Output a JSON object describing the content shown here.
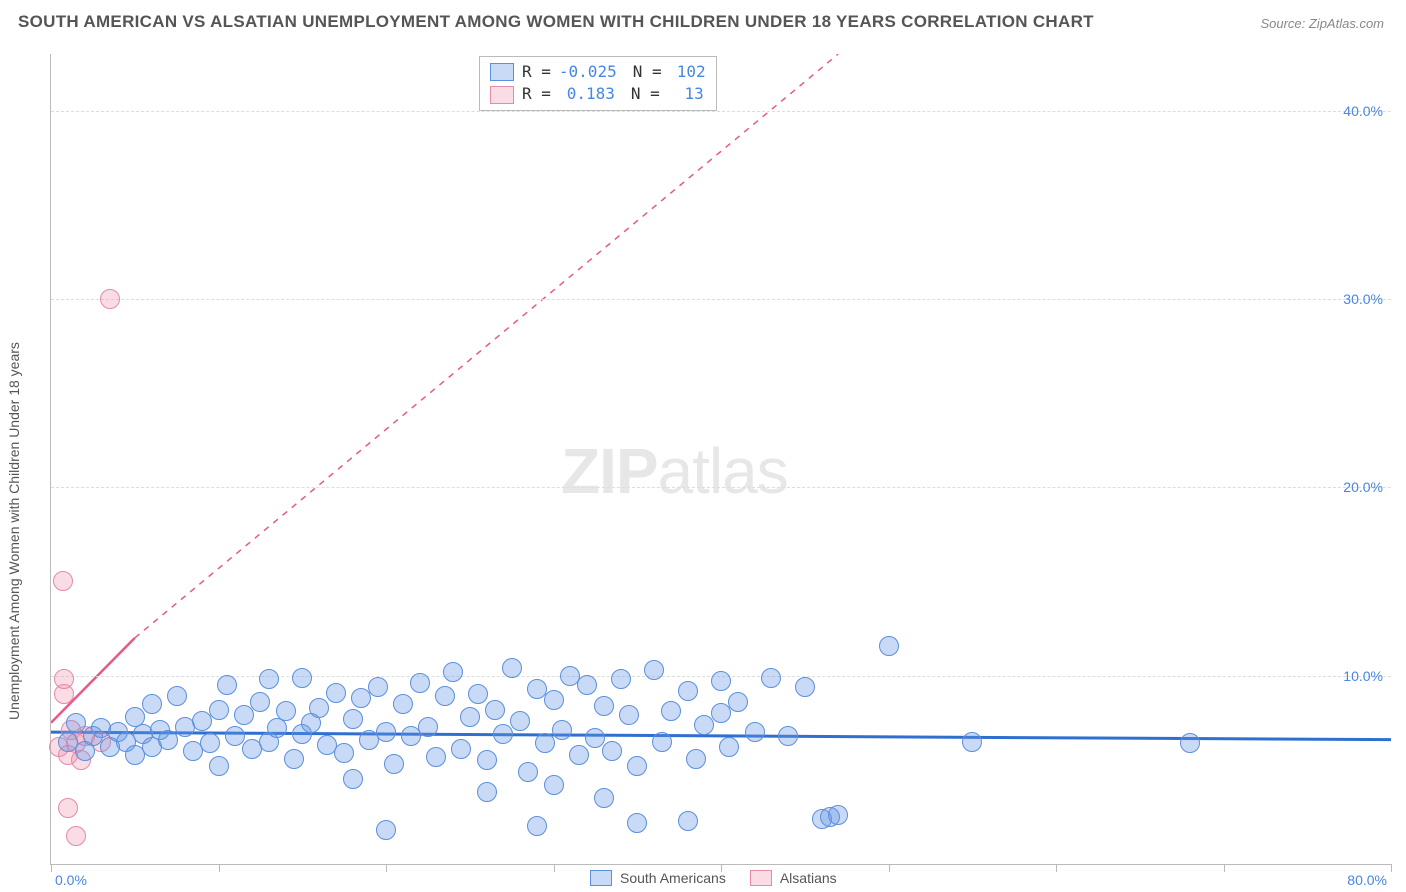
{
  "title": "SOUTH AMERICAN VS ALSATIAN UNEMPLOYMENT AMONG WOMEN WITH CHILDREN UNDER 18 YEARS CORRELATION CHART",
  "source": "Source: ZipAtlas.com",
  "watermark_zip": "ZIP",
  "watermark_atlas": "atlas",
  "y_axis_title": "Unemployment Among Women with Children Under 18 years",
  "chart": {
    "type": "scatter",
    "background_color": "#ffffff",
    "grid_color": "#dddddd",
    "axis_color": "#bbbbbb",
    "xlim": [
      0,
      80
    ],
    "ylim": [
      0,
      43
    ],
    "xtick_step": 10,
    "ytick_step": 10,
    "yticks": [
      10,
      20,
      30,
      40
    ],
    "ytick_labels": [
      "10.0%",
      "20.0%",
      "30.0%",
      "40.0%"
    ],
    "xtick_labels": [
      "0.0%",
      "80.0%"
    ],
    "marker_radius": 9,
    "marker_border_width": 1.2,
    "series": {
      "south_americans": {
        "label": "South Americans",
        "fill": "rgba(100,150,230,0.35)",
        "stroke": "#5c8fdc",
        "r_value": "-0.025",
        "n_value": "102",
        "line_color": "#2f6fd0",
        "line_width": 3,
        "line_dash": "none",
        "line": {
          "x1": 0,
          "y1": 7.0,
          "x2": 80,
          "y2": 6.6
        },
        "points": [
          [
            1,
            6.5
          ],
          [
            1.5,
            7.5
          ],
          [
            2,
            6
          ],
          [
            2.5,
            6.8
          ],
          [
            3,
            7.2
          ],
          [
            3.5,
            6.2
          ],
          [
            4,
            7
          ],
          [
            4.5,
            6.5
          ],
          [
            5,
            7.8
          ],
          [
            5,
            5.8
          ],
          [
            5.5,
            6.9
          ],
          [
            6,
            8.5
          ],
          [
            6,
            6.2
          ],
          [
            6.5,
            7.1
          ],
          [
            7,
            6.6
          ],
          [
            7.5,
            8.9
          ],
          [
            8,
            7.3
          ],
          [
            8.5,
            6
          ],
          [
            9,
            7.6
          ],
          [
            9.5,
            6.4
          ],
          [
            10,
            8.2
          ],
          [
            10,
            5.2
          ],
          [
            10.5,
            9.5
          ],
          [
            11,
            6.8
          ],
          [
            11.5,
            7.9
          ],
          [
            12,
            6.1
          ],
          [
            12.5,
            8.6
          ],
          [
            13,
            9.8
          ],
          [
            13,
            6.5
          ],
          [
            13.5,
            7.2
          ],
          [
            14,
            8.1
          ],
          [
            14.5,
            5.6
          ],
          [
            15,
            9.9
          ],
          [
            15,
            6.9
          ],
          [
            15.5,
            7.5
          ],
          [
            16,
            8.3
          ],
          [
            16.5,
            6.3
          ],
          [
            17,
            9.1
          ],
          [
            17.5,
            5.9
          ],
          [
            18,
            7.7
          ],
          [
            18,
            4.5
          ],
          [
            18.5,
            8.8
          ],
          [
            19,
            6.6
          ],
          [
            19.5,
            9.4
          ],
          [
            20,
            7.0
          ],
          [
            20.5,
            5.3
          ],
          [
            20,
            1.8
          ],
          [
            21,
            8.5
          ],
          [
            21.5,
            6.8
          ],
          [
            22,
            9.6
          ],
          [
            22.5,
            7.3
          ],
          [
            23,
            5.7
          ],
          [
            23.5,
            8.9
          ],
          [
            24,
            10.2
          ],
          [
            24.5,
            6.1
          ],
          [
            25,
            7.8
          ],
          [
            25.5,
            9.0
          ],
          [
            26,
            5.5
          ],
          [
            26,
            3.8
          ],
          [
            26.5,
            8.2
          ],
          [
            27,
            6.9
          ],
          [
            27.5,
            10.4
          ],
          [
            28,
            7.6
          ],
          [
            28.5,
            4.9
          ],
          [
            29,
            9.3
          ],
          [
            29,
            2.0
          ],
          [
            29.5,
            6.4
          ],
          [
            30,
            8.7
          ],
          [
            30.5,
            7.1
          ],
          [
            30,
            4.2
          ],
          [
            31,
            10.0
          ],
          [
            31.5,
            5.8
          ],
          [
            32,
            9.5
          ],
          [
            32.5,
            6.7
          ],
          [
            33,
            8.4
          ],
          [
            33,
            3.5
          ],
          [
            33.5,
            6.0
          ],
          [
            34,
            9.8
          ],
          [
            34.5,
            7.9
          ],
          [
            35,
            5.2
          ],
          [
            35,
            2.2
          ],
          [
            36,
            10.3
          ],
          [
            36.5,
            6.5
          ],
          [
            37,
            8.1
          ],
          [
            38,
            9.2
          ],
          [
            38.5,
            5.6
          ],
          [
            39,
            7.4
          ],
          [
            38,
            2.3
          ],
          [
            40,
            9.7
          ],
          [
            40.5,
            6.2
          ],
          [
            41,
            8.6
          ],
          [
            42,
            7.0
          ],
          [
            43,
            9.9
          ],
          [
            44,
            6.8
          ],
          [
            45,
            9.4
          ],
          [
            46,
            2.4
          ],
          [
            46.5,
            2.5
          ],
          [
            47,
            2.6
          ],
          [
            40,
            8.0
          ],
          [
            50,
            11.6
          ],
          [
            55,
            6.5
          ],
          [
            68,
            6.4
          ]
        ]
      },
      "alsatians": {
        "label": "Alsatians",
        "fill": "rgba(240,140,170,0.30)",
        "stroke": "#e68aa8",
        "r_value": "0.183",
        "n_value": "13",
        "line_color": "#e65a8a",
        "line_width_solid": 2.5,
        "line_width_dash": 1.5,
        "line_solid": {
          "x1": 0,
          "y1": 7.5,
          "x2": 5,
          "y2": 12.0
        },
        "line_dash": {
          "x1": 5,
          "y1": 12.0,
          "x2": 47,
          "y2": 43
        },
        "points": [
          [
            0.5,
            6.2
          ],
          [
            0.8,
            9.0
          ],
          [
            0.8,
            9.8
          ],
          [
            1.0,
            5.8
          ],
          [
            1.2,
            7.1
          ],
          [
            1.5,
            6.4
          ],
          [
            1.8,
            5.5
          ],
          [
            1.0,
            3.0
          ],
          [
            1.5,
            1.5
          ],
          [
            2.0,
            6.8
          ],
          [
            3.5,
            30.0
          ],
          [
            0.7,
            15.0
          ],
          [
            3.0,
            6.5
          ]
        ]
      }
    }
  },
  "stats_box": {
    "rows": [
      {
        "swatch_fill": "rgba(100,150,230,0.35)",
        "swatch_stroke": "#5c8fdc",
        "r_label": "R =",
        "r": "-0.025",
        "n_label": "N =",
        "n": "102"
      },
      {
        "swatch_fill": "rgba(240,140,170,0.30)",
        "swatch_stroke": "#e68aa8",
        "r_label": "R =",
        "r": "0.183",
        "n_label": "N =",
        "n": "13"
      }
    ]
  },
  "bottom_legend": [
    {
      "swatch_fill": "rgba(100,150,230,0.35)",
      "swatch_stroke": "#5c8fdc",
      "label": "South Americans"
    },
    {
      "swatch_fill": "rgba(240,140,170,0.30)",
      "swatch_stroke": "#e68aa8",
      "label": "Alsatians"
    }
  ]
}
